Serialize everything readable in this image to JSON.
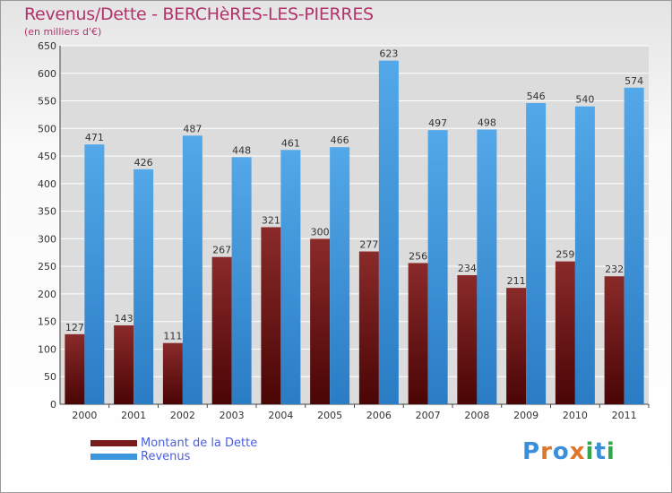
{
  "title": "Revenus/Dette - BERCHèRES-LES-PIERRES",
  "subtitle": "(en milliers d'€)",
  "logo": [
    "P",
    "r",
    "o",
    "x",
    "i",
    "t",
    "i"
  ],
  "colors": {
    "title": "#b0336a",
    "dette": "#7a1a1a",
    "revenus": "#3c96dc",
    "legend_text": "#4a5ee0",
    "logo": [
      "#3a8fd8",
      "#e0762a",
      "#3a8fd8",
      "#e0762a",
      "#2ea84a",
      "#3a8fd8",
      "#2ea84a"
    ]
  },
  "chart_data": {
    "type": "bar",
    "categories": [
      "2000",
      "2001",
      "2002",
      "2003",
      "2004",
      "2005",
      "2006",
      "2007",
      "2008",
      "2009",
      "2010",
      "2011"
    ],
    "series": [
      {
        "name": "Montant de la Dette",
        "values": [
          127,
          143,
          111,
          267,
          321,
          300,
          277,
          256,
          234,
          211,
          259,
          232
        ]
      },
      {
        "name": "Revenus",
        "values": [
          471,
          426,
          487,
          448,
          461,
          466,
          623,
          497,
          498,
          546,
          540,
          574
        ]
      }
    ],
    "ylim": [
      0,
      650
    ],
    "yticks": [
      0,
      50,
      100,
      150,
      200,
      250,
      300,
      350,
      400,
      450,
      500,
      550,
      600,
      650
    ],
    "grid": true,
    "legend": "bottom-left"
  }
}
